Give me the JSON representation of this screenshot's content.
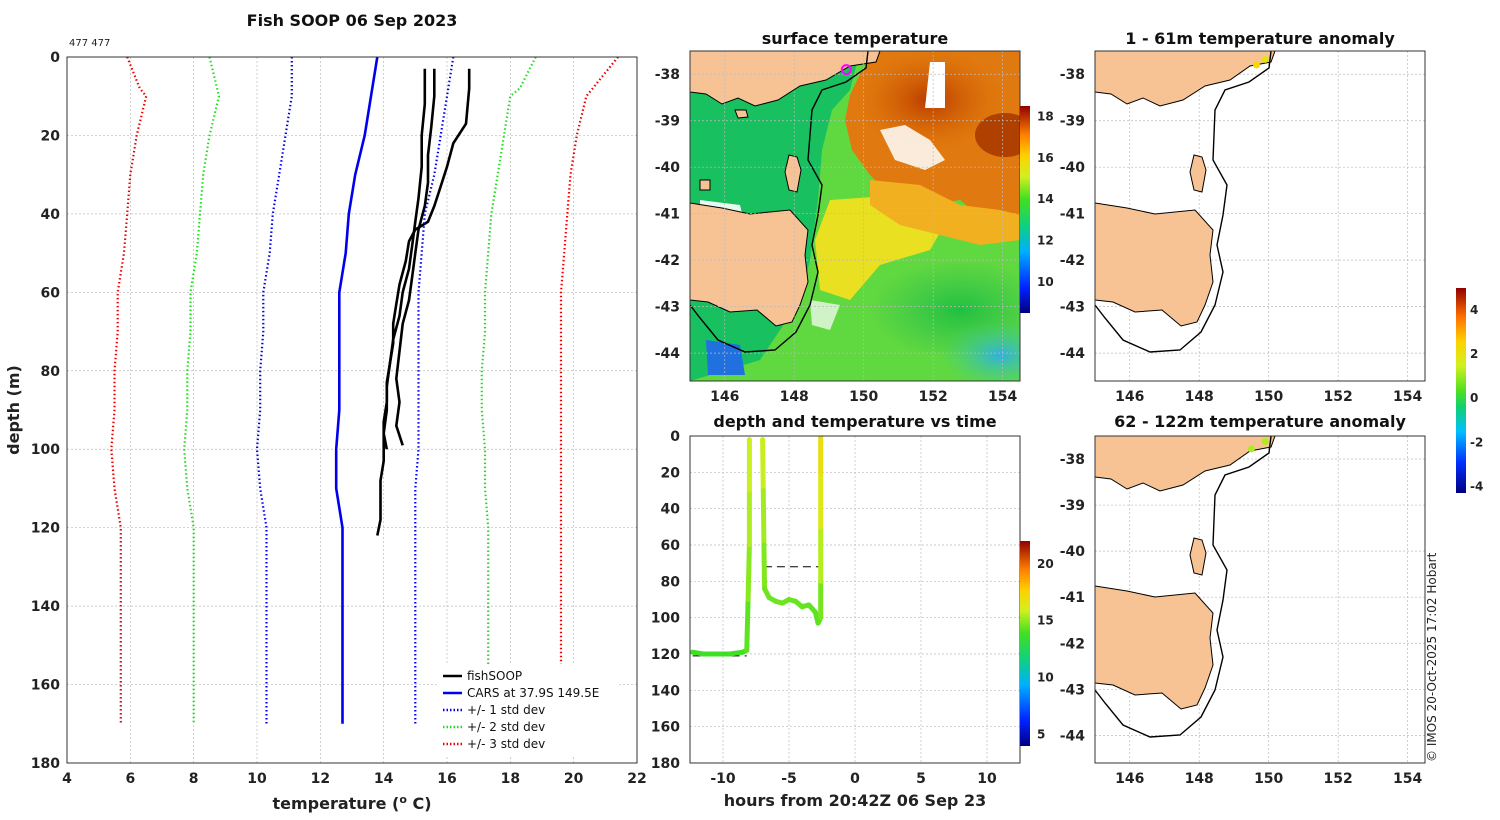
{
  "figure": {
    "credit": "© IMOS 20-Oct-2025 17:02 Hobart"
  },
  "chart_data": [
    {
      "id": "profile",
      "type": "line",
      "title": "Fish SOOP 06 Sep 2023",
      "corner_label": "477 477",
      "xlabel": "temperature (o C)",
      "ylabel": "depth (m)",
      "xlim": [
        4,
        22
      ],
      "ylim": [
        180,
        0
      ],
      "xticks": [
        4,
        6,
        8,
        10,
        12,
        14,
        16,
        18,
        20,
        22
      ],
      "yticks": [
        0,
        20,
        40,
        60,
        80,
        100,
        120,
        140,
        160,
        180
      ],
      "legend_position": "bottom-right",
      "legend": [
        "fishSOOP",
        "CARS at 37.9S 149.5E",
        "+/- 1 std dev",
        "+/- 2 std dev",
        "+/- 3 std dev"
      ],
      "series": [
        {
          "name": "fishSOOP",
          "color": "#000000",
          "style": "solid",
          "points": [
            [
              16.7,
              3
            ],
            [
              16.7,
              8
            ],
            [
              16.6,
              17
            ],
            [
              16.2,
              22
            ],
            [
              16.0,
              28
            ],
            [
              15.8,
              33
            ],
            [
              15.6,
              38
            ],
            [
              15.4,
              42
            ],
            [
              15.0,
              44
            ],
            [
              14.8,
              47
            ],
            [
              14.7,
              52
            ],
            [
              14.5,
              58
            ],
            [
              14.4,
              63
            ],
            [
              14.3,
              68
            ],
            [
              14.3,
              73
            ],
            [
              14.2,
              78
            ],
            [
              14.1,
              83
            ],
            [
              14.1,
              88
            ],
            [
              14.0,
              93
            ],
            [
              14.0,
              98
            ],
            [
              14.0,
              103
            ],
            [
              13.9,
              108
            ],
            [
              13.9,
              113
            ],
            [
              13.9,
              118
            ],
            [
              13.8,
              122
            ]
          ]
        },
        {
          "name": "fishSOOP",
          "color": "#000000",
          "style": "solid",
          "points": [
            [
              15.6,
              3
            ],
            [
              15.6,
              10
            ],
            [
              15.5,
              18
            ],
            [
              15.4,
              25
            ],
            [
              15.4,
              32
            ],
            [
              15.3,
              38
            ],
            [
              15.1,
              44
            ],
            [
              15.0,
              50
            ],
            [
              14.9,
              56
            ],
            [
              14.8,
              62
            ],
            [
              14.6,
              68
            ],
            [
              14.5,
              75
            ],
            [
              14.4,
              82
            ],
            [
              14.5,
              88
            ],
            [
              14.4,
              94
            ],
            [
              14.6,
              99
            ]
          ]
        },
        {
          "name": "fishSOOP",
          "color": "#000000",
          "style": "solid",
          "points": [
            [
              15.3,
              3
            ],
            [
              15.3,
              12
            ],
            [
              15.2,
              20
            ],
            [
              15.2,
              28
            ],
            [
              15.1,
              36
            ],
            [
              15.0,
              42
            ],
            [
              14.9,
              48
            ],
            [
              14.8,
              54
            ],
            [
              14.6,
              60
            ],
            [
              14.5,
              66
            ],
            [
              14.3,
              72
            ],
            [
              14.2,
              78
            ],
            [
              14.1,
              84
            ],
            [
              14.1,
              90
            ],
            [
              14.0,
              96
            ],
            [
              14.1,
              100
            ]
          ]
        },
        {
          "name": "CARS at 37.9S 149.5E",
          "color": "#0000ee",
          "style": "solid",
          "points": [
            [
              13.8,
              0
            ],
            [
              13.6,
              10
            ],
            [
              13.4,
              20
            ],
            [
              13.1,
              30
            ],
            [
              12.9,
              40
            ],
            [
              12.8,
              50
            ],
            [
              12.6,
              60
            ],
            [
              12.6,
              70
            ],
            [
              12.6,
              80
            ],
            [
              12.6,
              90
            ],
            [
              12.5,
              100
            ],
            [
              12.5,
              110
            ],
            [
              12.7,
              120
            ],
            [
              12.7,
              130
            ],
            [
              12.7,
              140
            ],
            [
              12.7,
              150
            ],
            [
              12.7,
              160
            ],
            [
              12.7,
              170
            ]
          ]
        },
        {
          "name": "+/- 1 std dev",
          "color": "#0000ee",
          "style": "dotted",
          "points": [
            [
              11.1,
              0
            ],
            [
              11.1,
              10
            ],
            [
              10.9,
              20
            ],
            [
              10.7,
              30
            ],
            [
              10.5,
              40
            ],
            [
              10.4,
              50
            ],
            [
              10.2,
              60
            ],
            [
              10.2,
              70
            ],
            [
              10.1,
              80
            ],
            [
              10.1,
              90
            ],
            [
              10.0,
              100
            ],
            [
              10.1,
              110
            ],
            [
              10.3,
              120
            ],
            [
              10.3,
              130
            ],
            [
              10.3,
              140
            ],
            [
              10.3,
              150
            ],
            [
              10.3,
              160
            ],
            [
              10.3,
              170
            ]
          ]
        },
        {
          "name": "+/- 1 std dev",
          "color": "#0000ee",
          "style": "dotted",
          "points": [
            [
              16.2,
              0
            ],
            [
              16.0,
              10
            ],
            [
              15.8,
              20
            ],
            [
              15.6,
              30
            ],
            [
              15.3,
              40
            ],
            [
              15.2,
              50
            ],
            [
              15.1,
              60
            ],
            [
              15.1,
              70
            ],
            [
              15.1,
              80
            ],
            [
              15.1,
              90
            ],
            [
              15.1,
              100
            ],
            [
              15.0,
              110
            ],
            [
              15.0,
              120
            ],
            [
              15.0,
              130
            ],
            [
              15.0,
              140
            ],
            [
              15.0,
              150
            ],
            [
              15.0,
              160
            ],
            [
              15.0,
              170
            ]
          ]
        },
        {
          "name": "+/- 2 std dev",
          "color": "#22dd22",
          "style": "dotted",
          "points": [
            [
              8.5,
              0
            ],
            [
              8.8,
              10
            ],
            [
              8.5,
              20
            ],
            [
              8.3,
              30
            ],
            [
              8.2,
              40
            ],
            [
              8.1,
              50
            ],
            [
              7.9,
              60
            ],
            [
              7.9,
              70
            ],
            [
              7.8,
              80
            ],
            [
              7.8,
              90
            ],
            [
              7.7,
              100
            ],
            [
              7.8,
              110
            ],
            [
              8.0,
              120
            ],
            [
              8.0,
              130
            ],
            [
              8.0,
              140
            ],
            [
              8.0,
              150
            ],
            [
              8.0,
              160
            ],
            [
              8.0,
              170
            ]
          ]
        },
        {
          "name": "+/- 2 std dev",
          "color": "#22dd22",
          "style": "dotted",
          "points": [
            [
              18.8,
              0
            ],
            [
              18.3,
              8
            ],
            [
              18.0,
              10
            ],
            [
              17.8,
              20
            ],
            [
              17.6,
              30
            ],
            [
              17.4,
              40
            ],
            [
              17.3,
              50
            ],
            [
              17.2,
              60
            ],
            [
              17.2,
              70
            ],
            [
              17.1,
              80
            ],
            [
              17.1,
              90
            ],
            [
              17.2,
              100
            ],
            [
              17.2,
              110
            ],
            [
              17.3,
              120
            ],
            [
              17.3,
              130
            ],
            [
              17.3,
              140
            ],
            [
              17.3,
              150
            ],
            [
              17.3,
              160
            ],
            [
              17.3,
              170
            ]
          ]
        },
        {
          "name": "+/- 3 std dev",
          "color": "#ee0000",
          "style": "dotted",
          "points": [
            [
              5.9,
              0
            ],
            [
              6.3,
              8
            ],
            [
              6.5,
              10
            ],
            [
              6.2,
              20
            ],
            [
              6.0,
              30
            ],
            [
              5.9,
              40
            ],
            [
              5.8,
              50
            ],
            [
              5.6,
              60
            ],
            [
              5.6,
              70
            ],
            [
              5.5,
              80
            ],
            [
              5.5,
              90
            ],
            [
              5.4,
              100
            ],
            [
              5.5,
              110
            ],
            [
              5.7,
              120
            ],
            [
              5.7,
              130
            ],
            [
              5.7,
              140
            ],
            [
              5.7,
              150
            ],
            [
              5.7,
              160
            ],
            [
              5.7,
              170
            ]
          ]
        },
        {
          "name": "+/- 3 std dev",
          "color": "#ee0000",
          "style": "dotted",
          "points": [
            [
              21.4,
              0
            ],
            [
              20.6,
              8
            ],
            [
              20.4,
              10
            ],
            [
              20.1,
              20
            ],
            [
              19.9,
              30
            ],
            [
              19.8,
              40
            ],
            [
              19.7,
              50
            ],
            [
              19.6,
              60
            ],
            [
              19.6,
              70
            ],
            [
              19.6,
              80
            ],
            [
              19.6,
              90
            ],
            [
              19.6,
              100
            ],
            [
              19.6,
              110
            ],
            [
              19.6,
              120
            ],
            [
              19.6,
              130
            ],
            [
              19.6,
              140
            ],
            [
              19.6,
              150
            ],
            [
              19.6,
              160
            ],
            [
              19.6,
              170
            ]
          ]
        }
      ]
    },
    {
      "id": "sst",
      "type": "heatmap",
      "title": "surface temperature",
      "xlim": [
        145,
        154.5
      ],
      "ylim": [
        -44.6,
        -37.5
      ],
      "xticks": [
        146,
        148,
        150,
        152,
        154
      ],
      "yticks": [
        -38,
        -39,
        -40,
        -41,
        -42,
        -43,
        -44
      ],
      "colorbar": {
        "min": 8.5,
        "max": 18.5,
        "ticks": [
          10,
          12,
          14,
          16,
          18
        ]
      },
      "vessel_marker": [
        149.5,
        -37.9
      ]
    },
    {
      "id": "timeseries",
      "type": "scatter",
      "title": "depth and temperature vs time",
      "xlabel": "hours from 20:42Z 06 Sep 23",
      "xlim": [
        -12.5,
        12.5
      ],
      "ylim": [
        180,
        0
      ],
      "xticks": [
        -10,
        -5,
        0,
        5,
        10
      ],
      "yticks": [
        0,
        20,
        40,
        60,
        80,
        100,
        120,
        140,
        160,
        180
      ],
      "colorbar": {
        "min": 4,
        "max": 22,
        "ticks": [
          5,
          10,
          15,
          20
        ]
      },
      "reference_depths": [
        72,
        121
      ],
      "tracks": [
        {
          "points": [
            [
              -12.3,
              119,
              13.8
            ],
            [
              -11.5,
              120,
              13.8
            ],
            [
              -10.5,
              120,
              13.8
            ],
            [
              -9.5,
              120,
              13.8
            ],
            [
              -8.5,
              119,
              13.9
            ],
            [
              -8.2,
              118,
              14.0
            ],
            [
              -8.1,
              90,
              14.6
            ],
            [
              -8.0,
              60,
              15.2
            ],
            [
              -8.0,
              30,
              15.6
            ],
            [
              -8.0,
              2,
              16.0
            ]
          ]
        },
        {
          "points": [
            [
              -7.0,
              2,
              16.0
            ],
            [
              -6.95,
              30,
              15.5
            ],
            [
              -6.9,
              60,
              15.0
            ],
            [
              -6.85,
              84,
              14.6
            ],
            [
              -6.5,
              89,
              14.5
            ],
            [
              -6.0,
              91,
              14.5
            ],
            [
              -5.5,
              92,
              14.5
            ],
            [
              -5.0,
              90,
              14.5
            ],
            [
              -4.5,
              91,
              14.5
            ],
            [
              -4.0,
              94,
              14.4
            ],
            [
              -3.5,
              93,
              14.4
            ],
            [
              -3.0,
              97,
              14.3
            ],
            [
              -2.8,
              103,
              14.2
            ],
            [
              -2.6,
              100,
              14.3
            ],
            [
              -2.6,
              80,
              15.0
            ],
            [
              -2.6,
              50,
              16.0
            ],
            [
              -2.6,
              20,
              16.8
            ],
            [
              -2.6,
              0,
              17.0
            ]
          ]
        }
      ]
    },
    {
      "id": "anom_shallow",
      "type": "heatmap",
      "title": "1 - 61m temperature anomaly",
      "xlim": [
        145,
        154.5
      ],
      "ylim": [
        -44.6,
        -37.5
      ],
      "xticks": [
        146,
        148,
        150,
        152,
        154
      ],
      "yticks": [
        -38,
        -39,
        -40,
        -41,
        -42,
        -43,
        -44
      ],
      "dots": [
        [
          149.65,
          -37.8,
          2.6
        ],
        [
          149.9,
          -37.68,
          2.2
        ]
      ]
    },
    {
      "id": "anom_deep",
      "type": "heatmap",
      "title": "62 - 122m temperature anomaly",
      "xlim": [
        145,
        154.5
      ],
      "ylim": [
        -44.6,
        -37.5
      ],
      "xticks": [
        146,
        148,
        150,
        152,
        154
      ],
      "yticks": [
        -38,
        -39,
        -40,
        -41,
        -42,
        -43,
        -44
      ],
      "dots": [
        [
          149.5,
          -37.78,
          1.6
        ],
        [
          149.9,
          -37.62,
          1.6
        ]
      ],
      "colorbar": {
        "min": -4.3,
        "max": 5.0,
        "ticks": [
          -4,
          -2,
          0,
          2,
          4
        ]
      }
    }
  ]
}
